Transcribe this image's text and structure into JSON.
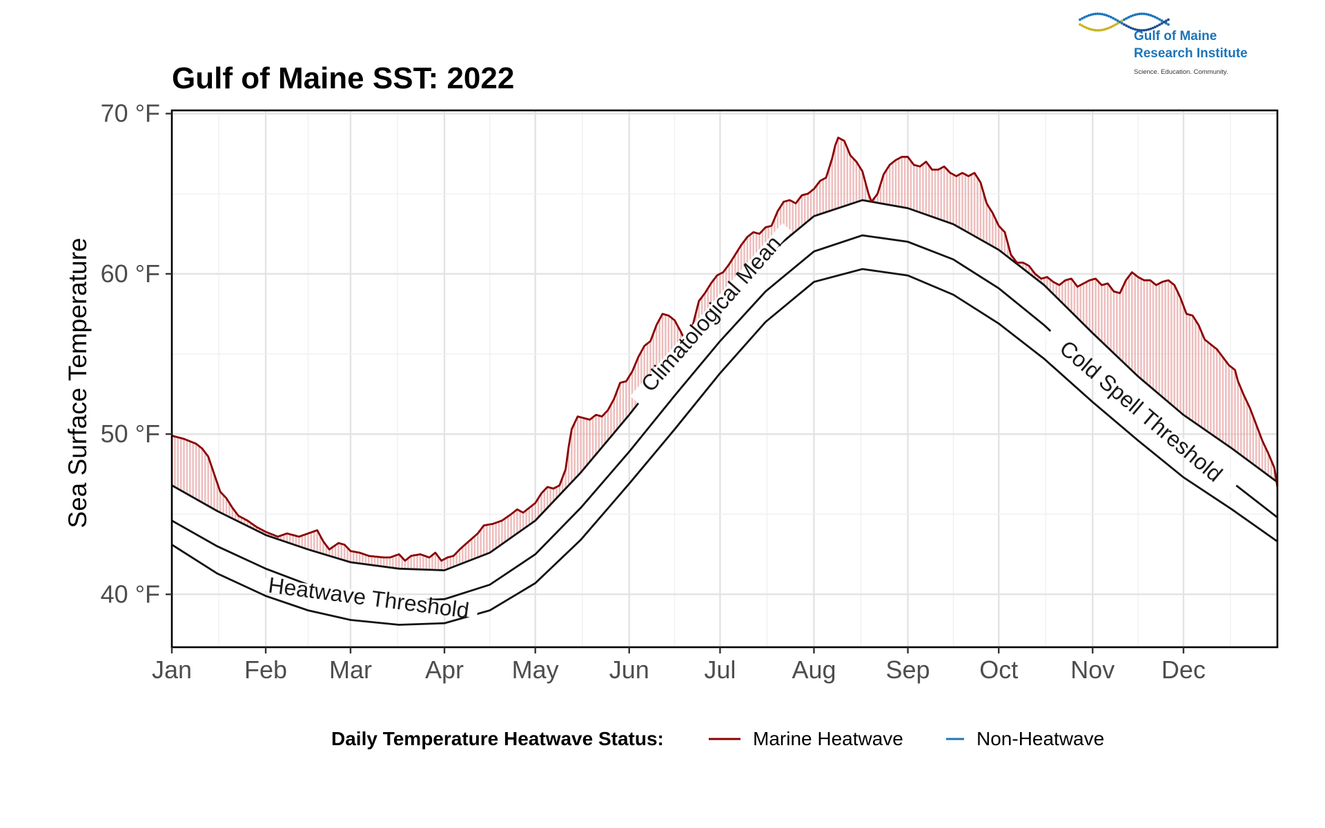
{
  "logo": {
    "line1": "Gulf of Maine",
    "line2": "Research Institute",
    "tagline": "Science. Education. Community.",
    "colors": [
      "#c9b21e",
      "#1b75bb",
      "#1f4e8c"
    ]
  },
  "chart_data": {
    "type": "line",
    "title": "Gulf of Maine SST: 2022",
    "xlabel": "",
    "ylabel": "Sea Surface Temperature",
    "x_ticks": [
      "Jan",
      "Feb",
      "Mar",
      "Apr",
      "May",
      "Jun",
      "Jul",
      "Aug",
      "Sep",
      "Oct",
      "Nov",
      "Dec"
    ],
    "x_tick_days": [
      0,
      31,
      59,
      90,
      120,
      151,
      181,
      212,
      243,
      273,
      304,
      334
    ],
    "xlim": [
      0,
      365
    ],
    "y_ticks": [
      "40 °F",
      "50 °F",
      "60 °F",
      "70 °F"
    ],
    "y_tick_values": [
      40,
      50,
      60,
      70
    ],
    "ylim": [
      36.7,
      70.2
    ],
    "grid": true,
    "curve_labels": [
      "Heatwave Threshold",
      "Climatological Mean",
      "Cold Spell Threshold"
    ],
    "legend": {
      "title": "Daily Temperature Heatwave Status:",
      "placement": "bottom",
      "entries": [
        {
          "label": "Marine Heatwave",
          "color": "#8b0000"
        },
        {
          "label": "Non-Heatwave",
          "color": "#1f77b4"
        }
      ]
    },
    "fill_colors": {
      "heatwave": "#e8a8a8",
      "non_heatwave": "#a9d4ee"
    },
    "series": [
      {
        "key": "sst",
        "points": [
          [
            0,
            49.9
          ],
          [
            4,
            49.7
          ],
          [
            8,
            49.4
          ],
          [
            10,
            49.1
          ],
          [
            12,
            48.6
          ],
          [
            14,
            47.5
          ],
          [
            16,
            46.4
          ],
          [
            18,
            46.0
          ],
          [
            20,
            45.4
          ],
          [
            22,
            44.9
          ],
          [
            25,
            44.6
          ],
          [
            28,
            44.2
          ],
          [
            31,
            43.9
          ],
          [
            35,
            43.6
          ],
          [
            38,
            43.8
          ],
          [
            42,
            43.6
          ],
          [
            45,
            43.8
          ],
          [
            48,
            44.0
          ],
          [
            50,
            43.3
          ],
          [
            52,
            42.8
          ],
          [
            55,
            43.2
          ],
          [
            57,
            43.1
          ],
          [
            59,
            42.7
          ],
          [
            62,
            42.6
          ],
          [
            65,
            42.4
          ],
          [
            70,
            42.3
          ],
          [
            72,
            42.3
          ],
          [
            75,
            42.5
          ],
          [
            77,
            42.1
          ],
          [
            79,
            42.4
          ],
          [
            82,
            42.5
          ],
          [
            85,
            42.3
          ],
          [
            87,
            42.6
          ],
          [
            89,
            42.1
          ],
          [
            91,
            42.3
          ],
          [
            93,
            42.4
          ],
          [
            95,
            42.8
          ],
          [
            98,
            43.3
          ],
          [
            101,
            43.8
          ],
          [
            103,
            44.3
          ],
          [
            106,
            44.4
          ],
          [
            109,
            44.6
          ],
          [
            112,
            45.0
          ],
          [
            114,
            45.3
          ],
          [
            116,
            45.1
          ],
          [
            118,
            45.4
          ],
          [
            120,
            45.7
          ],
          [
            122,
            46.3
          ],
          [
            124,
            46.7
          ],
          [
            126,
            46.6
          ],
          [
            128,
            46.8
          ],
          [
            130,
            47.8
          ],
          [
            131,
            49.2
          ],
          [
            132,
            50.3
          ],
          [
            134,
            51.1
          ],
          [
            136,
            51.0
          ],
          [
            138,
            50.9
          ],
          [
            140,
            51.2
          ],
          [
            142,
            51.1
          ],
          [
            144,
            51.5
          ],
          [
            146,
            52.2
          ],
          [
            148,
            53.2
          ],
          [
            150,
            53.3
          ],
          [
            152,
            53.9
          ],
          [
            154,
            54.8
          ],
          [
            156,
            55.5
          ],
          [
            158,
            55.8
          ],
          [
            160,
            56.8
          ],
          [
            162,
            57.5
          ],
          [
            164,
            57.4
          ],
          [
            166,
            57.1
          ],
          [
            168,
            56.4
          ],
          [
            169,
            56.0
          ],
          [
            170,
            56.1
          ],
          [
            172,
            56.8
          ],
          [
            174,
            58.3
          ],
          [
            176,
            58.8
          ],
          [
            178,
            59.4
          ],
          [
            180,
            59.9
          ],
          [
            182,
            60.1
          ],
          [
            184,
            60.6
          ],
          [
            186,
            61.2
          ],
          [
            188,
            61.8
          ],
          [
            190,
            62.3
          ],
          [
            192,
            62.6
          ],
          [
            194,
            62.5
          ],
          [
            196,
            62.9
          ],
          [
            198,
            63.0
          ],
          [
            200,
            63.9
          ],
          [
            202,
            64.5
          ],
          [
            204,
            64.6
          ],
          [
            206,
            64.4
          ],
          [
            208,
            64.9
          ],
          [
            210,
            65.0
          ],
          [
            212,
            65.3
          ],
          [
            214,
            65.8
          ],
          [
            216,
            66.0
          ],
          [
            218,
            67.2
          ],
          [
            219,
            68.0
          ],
          [
            220,
            68.5
          ],
          [
            222,
            68.3
          ],
          [
            224,
            67.4
          ],
          [
            226,
            67.0
          ],
          [
            228,
            66.4
          ],
          [
            229,
            65.7
          ],
          [
            230,
            65.0
          ],
          [
            231,
            64.5
          ],
          [
            233,
            65.0
          ],
          [
            235,
            66.2
          ],
          [
            237,
            66.8
          ],
          [
            239,
            67.1
          ],
          [
            241,
            67.3
          ],
          [
            243,
            67.3
          ],
          [
            245,
            66.8
          ],
          [
            247,
            66.7
          ],
          [
            249,
            67.0
          ],
          [
            251,
            66.5
          ],
          [
            253,
            66.5
          ],
          [
            255,
            66.7
          ],
          [
            257,
            66.3
          ],
          [
            259,
            66.1
          ],
          [
            261,
            66.3
          ],
          [
            263,
            66.1
          ],
          [
            265,
            66.3
          ],
          [
            267,
            65.7
          ],
          [
            269,
            64.4
          ],
          [
            271,
            63.8
          ],
          [
            273,
            63.0
          ],
          [
            275,
            62.6
          ],
          [
            277,
            61.2
          ],
          [
            279,
            60.7
          ],
          [
            281,
            60.7
          ],
          [
            283,
            60.5
          ],
          [
            285,
            60.0
          ],
          [
            287,
            59.7
          ],
          [
            289,
            59.8
          ],
          [
            291,
            59.5
          ],
          [
            293,
            59.3
          ],
          [
            295,
            59.6
          ],
          [
            297,
            59.7
          ],
          [
            299,
            59.2
          ],
          [
            301,
            59.4
          ],
          [
            303,
            59.6
          ],
          [
            305,
            59.7
          ],
          [
            307,
            59.3
          ],
          [
            309,
            59.4
          ],
          [
            311,
            58.9
          ],
          [
            313,
            58.8
          ],
          [
            315,
            59.6
          ],
          [
            317,
            60.1
          ],
          [
            319,
            59.8
          ],
          [
            321,
            59.6
          ],
          [
            323,
            59.6
          ],
          [
            325,
            59.3
          ],
          [
            327,
            59.5
          ],
          [
            329,
            59.6
          ],
          [
            331,
            59.3
          ],
          [
            333,
            58.5
          ],
          [
            335,
            57.5
          ],
          [
            337,
            57.4
          ],
          [
            339,
            56.8
          ],
          [
            341,
            55.9
          ],
          [
            343,
            55.6
          ],
          [
            345,
            55.3
          ],
          [
            347,
            54.8
          ],
          [
            349,
            54.3
          ],
          [
            351,
            54.0
          ],
          [
            352,
            53.3
          ],
          [
            354,
            52.4
          ],
          [
            356,
            51.6
          ],
          [
            358,
            50.6
          ],
          [
            360,
            49.6
          ],
          [
            362,
            48.8
          ],
          [
            364,
            47.9
          ],
          [
            365,
            46.7
          ]
        ]
      },
      {
        "key": "heatwave_threshold",
        "points": [
          [
            0,
            46.8
          ],
          [
            15,
            45.2
          ],
          [
            31,
            43.7
          ],
          [
            45,
            42.8
          ],
          [
            59,
            42.0
          ],
          [
            75,
            41.6
          ],
          [
            90,
            41.5
          ],
          [
            105,
            42.6
          ],
          [
            120,
            44.6
          ],
          [
            135,
            47.6
          ],
          [
            151,
            51.2
          ],
          [
            166,
            54.8
          ],
          [
            181,
            58.2
          ],
          [
            196,
            61.1
          ],
          [
            212,
            63.6
          ],
          [
            228,
            64.6
          ],
          [
            243,
            64.1
          ],
          [
            258,
            63.1
          ],
          [
            273,
            61.5
          ],
          [
            288,
            59.3
          ],
          [
            304,
            56.3
          ],
          [
            319,
            53.6
          ],
          [
            334,
            51.2
          ],
          [
            350,
            49.1
          ],
          [
            365,
            47.0
          ]
        ]
      },
      {
        "key": "climatological_mean",
        "points": [
          [
            0,
            44.6
          ],
          [
            15,
            43.0
          ],
          [
            31,
            41.6
          ],
          [
            45,
            40.6
          ],
          [
            59,
            39.9
          ],
          [
            75,
            39.6
          ],
          [
            90,
            39.7
          ],
          [
            105,
            40.6
          ],
          [
            120,
            42.5
          ],
          [
            135,
            45.4
          ],
          [
            151,
            48.9
          ],
          [
            166,
            52.4
          ],
          [
            181,
            55.8
          ],
          [
            196,
            58.9
          ],
          [
            212,
            61.4
          ],
          [
            228,
            62.4
          ],
          [
            243,
            62.0
          ],
          [
            258,
            60.9
          ],
          [
            273,
            59.1
          ],
          [
            288,
            56.8
          ],
          [
            304,
            54.0
          ],
          [
            319,
            51.6
          ],
          [
            334,
            49.2
          ],
          [
            350,
            47.0
          ],
          [
            365,
            44.8
          ]
        ]
      },
      {
        "key": "cold_spell_threshold",
        "points": [
          [
            0,
            43.1
          ],
          [
            15,
            41.3
          ],
          [
            31,
            39.9
          ],
          [
            45,
            39.0
          ],
          [
            59,
            38.4
          ],
          [
            75,
            38.1
          ],
          [
            90,
            38.2
          ],
          [
            105,
            39.0
          ],
          [
            120,
            40.7
          ],
          [
            135,
            43.4
          ],
          [
            151,
            46.9
          ],
          [
            166,
            50.3
          ],
          [
            181,
            53.8
          ],
          [
            196,
            57.0
          ],
          [
            212,
            59.5
          ],
          [
            228,
            60.3
          ],
          [
            243,
            59.9
          ],
          [
            258,
            58.7
          ],
          [
            273,
            56.9
          ],
          [
            288,
            54.7
          ],
          [
            304,
            52.0
          ],
          [
            319,
            49.6
          ],
          [
            334,
            47.3
          ],
          [
            350,
            45.3
          ],
          [
            365,
            43.3
          ]
        ]
      }
    ]
  }
}
